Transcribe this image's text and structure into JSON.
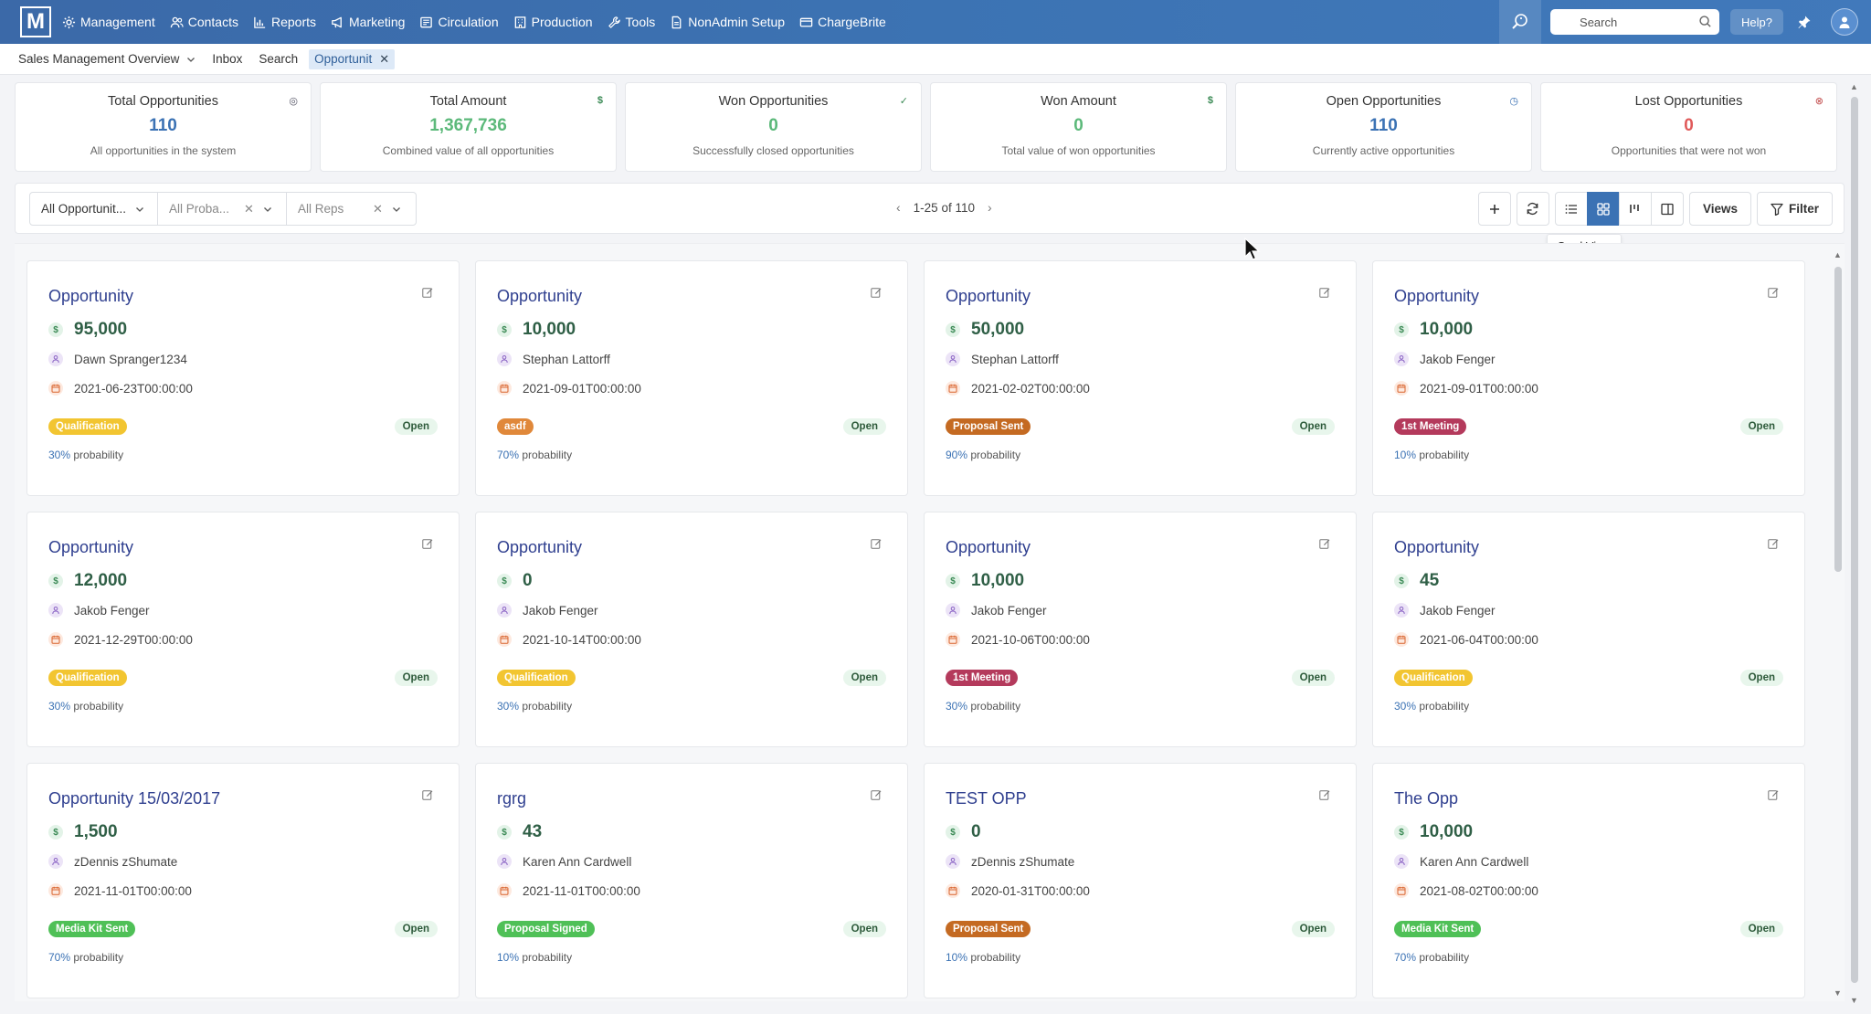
{
  "nav": {
    "logo": "M",
    "items": [
      {
        "label": "Management",
        "icon": "gear-icon"
      },
      {
        "label": "Contacts",
        "icon": "contacts-icon"
      },
      {
        "label": "Reports",
        "icon": "bar-chart-icon"
      },
      {
        "label": "Marketing",
        "icon": "megaphone-icon"
      },
      {
        "label": "Circulation",
        "icon": "newspaper-icon"
      },
      {
        "label": "Production",
        "icon": "building-icon"
      },
      {
        "label": "Tools",
        "icon": "wrench-icon"
      },
      {
        "label": "NonAdmin Setup",
        "icon": "document-icon"
      },
      {
        "label": "ChargeBrite",
        "icon": "credit-card-icon"
      }
    ],
    "search_placeholder": "Search",
    "help_label": "Help?"
  },
  "tabs": {
    "overview": "Sales Management Overview",
    "inbox": "Inbox",
    "search": "Search",
    "active": "Opportunit"
  },
  "stats": [
    {
      "title": "Total Opportunities",
      "value": "110",
      "subtitle": "All opportunities in the system",
      "color": "#3b72b4",
      "icon": "target-icon",
      "glyph": "◎"
    },
    {
      "title": "Total Amount",
      "value": "1,367,736",
      "subtitle": "Combined value of all opportunities",
      "color": "#5cb97a",
      "icon": "dollar-icon",
      "glyph": "$"
    },
    {
      "title": "Won Opportunities",
      "value": "0",
      "subtitle": "Successfully closed opportunities",
      "color": "#5cb97a",
      "icon": "check-circle-icon",
      "glyph": "✓"
    },
    {
      "title": "Won Amount",
      "value": "0",
      "subtitle": "Total value of won opportunities",
      "color": "#5cb97a",
      "icon": "dollar-icon",
      "glyph": "$"
    },
    {
      "title": "Open Opportunities",
      "value": "110",
      "subtitle": "Currently active opportunities",
      "color": "#3b72b4",
      "icon": "clock-icon",
      "glyph": "◷"
    },
    {
      "title": "Lost Opportunities",
      "value": "0",
      "subtitle": "Opportunities that were not won",
      "color": "#e05a5a",
      "icon": "x-circle-icon",
      "glyph": "⊗"
    }
  ],
  "toolbar": {
    "filter_type": "All Opportunit...",
    "filter_probability": "All Proba...",
    "filter_reps": "All Reps",
    "pager": "1-25 of 110",
    "views_label": "Views",
    "filter_label": "Filter",
    "tooltip": "Card View"
  },
  "cards": [
    {
      "title": "Opportunity",
      "amount": "95,000",
      "rep": "Dawn Spranger1234",
      "date": "2021-06-23T00:00:00",
      "stage": "Qualification",
      "stage_color": "#f2c531",
      "status": "Open",
      "prob": "30%",
      "prob_label": "probability"
    },
    {
      "title": "Opportunity",
      "amount": "10,000",
      "rep": "Stephan Lattorff",
      "date": "2021-09-01T00:00:00",
      "stage": "asdf",
      "stage_color": "#e0883a",
      "status": "Open",
      "prob": "70%",
      "prob_label": "probability"
    },
    {
      "title": "Opportunity",
      "amount": "50,000",
      "rep": "Stephan Lattorff",
      "date": "2021-02-02T00:00:00",
      "stage": "Proposal Sent",
      "stage_color": "#c46a22",
      "status": "Open",
      "prob": "90%",
      "prob_label": "probability"
    },
    {
      "title": "Opportunity",
      "amount": "10,000",
      "rep": "Jakob Fenger",
      "date": "2021-09-01T00:00:00",
      "stage": "1st Meeting",
      "stage_color": "#b43a5c",
      "status": "Open",
      "prob": "10%",
      "prob_label": "probability"
    },
    {
      "title": "Opportunity",
      "amount": "12,000",
      "rep": "Jakob Fenger",
      "date": "2021-12-29T00:00:00",
      "stage": "Qualification",
      "stage_color": "#f2c531",
      "status": "Open",
      "prob": "30%",
      "prob_label": "probability"
    },
    {
      "title": "Opportunity",
      "amount": "0",
      "rep": "Jakob Fenger",
      "date": "2021-10-14T00:00:00",
      "stage": "Qualification",
      "stage_color": "#f2c531",
      "status": "Open",
      "prob": "30%",
      "prob_label": "probability"
    },
    {
      "title": "Opportunity",
      "amount": "10,000",
      "rep": "Jakob Fenger",
      "date": "2021-10-06T00:00:00",
      "stage": "1st Meeting",
      "stage_color": "#b43a5c",
      "status": "Open",
      "prob": "30%",
      "prob_label": "probability"
    },
    {
      "title": "Opportunity",
      "amount": "45",
      "rep": "Jakob Fenger",
      "date": "2021-06-04T00:00:00",
      "stage": "Qualification",
      "stage_color": "#f2c531",
      "status": "Open",
      "prob": "30%",
      "prob_label": "probability"
    },
    {
      "title": "Opportunity 15/03/2017",
      "amount": "1,500",
      "rep": "zDennis zShumate",
      "date": "2021-11-01T00:00:00",
      "stage": "Media Kit Sent",
      "stage_color": "#4fc057",
      "status": "Open",
      "prob": "70%",
      "prob_label": "probability"
    },
    {
      "title": "rgrg",
      "amount": "43",
      "rep": "Karen Ann Cardwell",
      "date": "2021-11-01T00:00:00",
      "stage": "Proposal Signed",
      "stage_color": "#4fc057",
      "status": "Open",
      "prob": "10%",
      "prob_label": "probability"
    },
    {
      "title": "TEST OPP",
      "amount": "0",
      "rep": "zDennis zShumate",
      "date": "2020-01-31T00:00:00",
      "stage": "Proposal Sent",
      "stage_color": "#c46a22",
      "status": "Open",
      "prob": "10%",
      "prob_label": "probability"
    },
    {
      "title": "The Opp",
      "amount": "10,000",
      "rep": "Karen Ann Cardwell",
      "date": "2021-08-02T00:00:00",
      "stage": "Media Kit Sent",
      "stage_color": "#4fc057",
      "status": "Open",
      "prob": "70%",
      "prob_label": "probability"
    }
  ]
}
